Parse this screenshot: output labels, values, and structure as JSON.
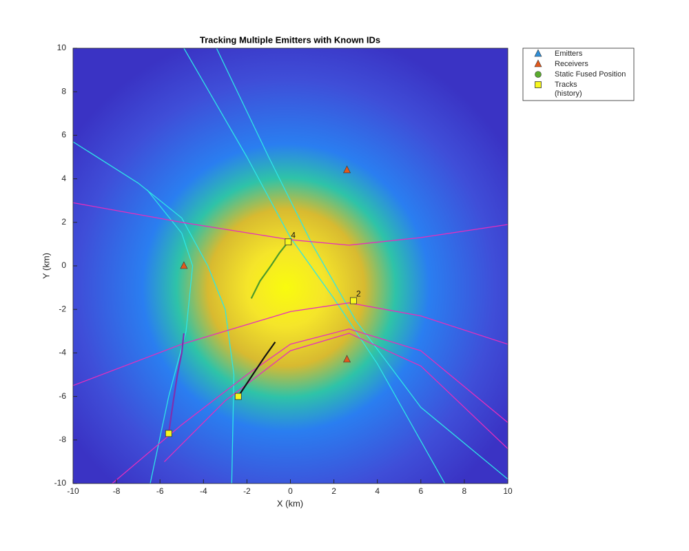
{
  "chart_data": {
    "type": "scatter",
    "title": "Tracking Multiple Emitters with Known IDs",
    "xlabel": "X (km)",
    "ylabel": "Y (km)",
    "xlim": [
      -10,
      10
    ],
    "ylim": [
      -10,
      10
    ],
    "xticks": [
      -10,
      -8,
      -6,
      -4,
      -2,
      0,
      2,
      4,
      6,
      8,
      10
    ],
    "yticks": [
      -10,
      -8,
      -6,
      -4,
      -2,
      0,
      2,
      4,
      6,
      8,
      10
    ],
    "series": [
      {
        "name": "Emitters",
        "marker": "triangle",
        "color": "#2f8fd8",
        "x": [],
        "y": []
      },
      {
        "name": "Receivers",
        "marker": "triangle",
        "color": "#e2591c",
        "x": [
          2.6,
          -4.9,
          2.6
        ],
        "y": [
          4.4,
          0.0,
          -4.3
        ]
      },
      {
        "name": "Static Fused Position",
        "marker": "circle",
        "color": "#5aab2e",
        "x": [],
        "y": []
      },
      {
        "name": "Tracks",
        "legend_note": "(history)",
        "marker": "square",
        "color": "#f7f71e",
        "x": [
          -0.1,
          2.9,
          -2.4,
          -5.6
        ],
        "y": [
          1.1,
          -1.6,
          -6.0,
          -7.7
        ],
        "labels": [
          "4",
          "2",
          null,
          null
        ]
      }
    ],
    "histories": [
      {
        "color": "#4c9a2a",
        "x": [
          -1.8,
          -1.4,
          -0.9,
          -0.5,
          -0.1
        ],
        "y": [
          -1.5,
          -0.7,
          0.0,
          0.6,
          1.1
        ]
      },
      {
        "color": "#7e2fb0",
        "x": [
          -5.6,
          -5.4,
          -5.2,
          -5.0,
          -4.9
        ],
        "y": [
          -7.7,
          -6.3,
          -5.0,
          -4.0,
          -3.1
        ]
      },
      {
        "color": "#111111",
        "x": [
          -2.4,
          -1.8,
          -1.2,
          -0.7
        ],
        "y": [
          -6.0,
          -5.1,
          -4.2,
          -3.5
        ]
      }
    ],
    "curves": [
      {
        "color": "#2ee6e6",
        "x": [
          -4.9,
          -2.0,
          0.0,
          2.0,
          4.0,
          7.1
        ],
        "y": [
          10,
          5,
          1.3,
          -1.5,
          -4.5,
          -10
        ]
      },
      {
        "color": "#2ee6e6",
        "x": [
          -3.4,
          -1.0,
          1.0,
          3.0,
          6.0,
          10.0
        ],
        "y": [
          10,
          5,
          1,
          -2.5,
          -6.5,
          -9.8
        ]
      },
      {
        "color": "#2ee6e6",
        "x": [
          -10,
          -7,
          -5,
          -3.8,
          -3.0,
          -2.6,
          -2.7
        ],
        "y": [
          5.7,
          3.8,
          2.2,
          0,
          -2,
          -5,
          -10
        ]
      },
      {
        "color": "#2ee6e6",
        "x": [
          -6.6,
          -5.0,
          -4.5,
          -4.8,
          -5.6,
          -6.45
        ],
        "y": [
          3.5,
          1.5,
          0,
          -3,
          -6,
          -10
        ]
      },
      {
        "color": "#e52ebd",
        "x": [
          -10,
          -5,
          0,
          2.7,
          6,
          10
        ],
        "y": [
          2.9,
          2.0,
          1.2,
          0.95,
          1.3,
          1.9
        ]
      },
      {
        "color": "#e52ebd",
        "x": [
          -10,
          -5,
          0,
          2.7,
          6,
          10
        ],
        "y": [
          -5.5,
          -3.6,
          -2.1,
          -1.7,
          -2.3,
          -3.6
        ]
      },
      {
        "color": "#e52ebd",
        "x": [
          -8.2,
          -5,
          -2,
          0,
          2.7,
          6,
          10
        ],
        "y": [
          -10,
          -7.3,
          -5,
          -3.6,
          -2.9,
          -3.9,
          -7.2
        ]
      },
      {
        "color": "#e52ebd",
        "x": [
          -5.8,
          -3,
          0,
          2.7,
          6,
          10
        ],
        "y": [
          -9,
          -6.2,
          -3.9,
          -3.1,
          -4.6,
          -8.4
        ]
      }
    ]
  }
}
